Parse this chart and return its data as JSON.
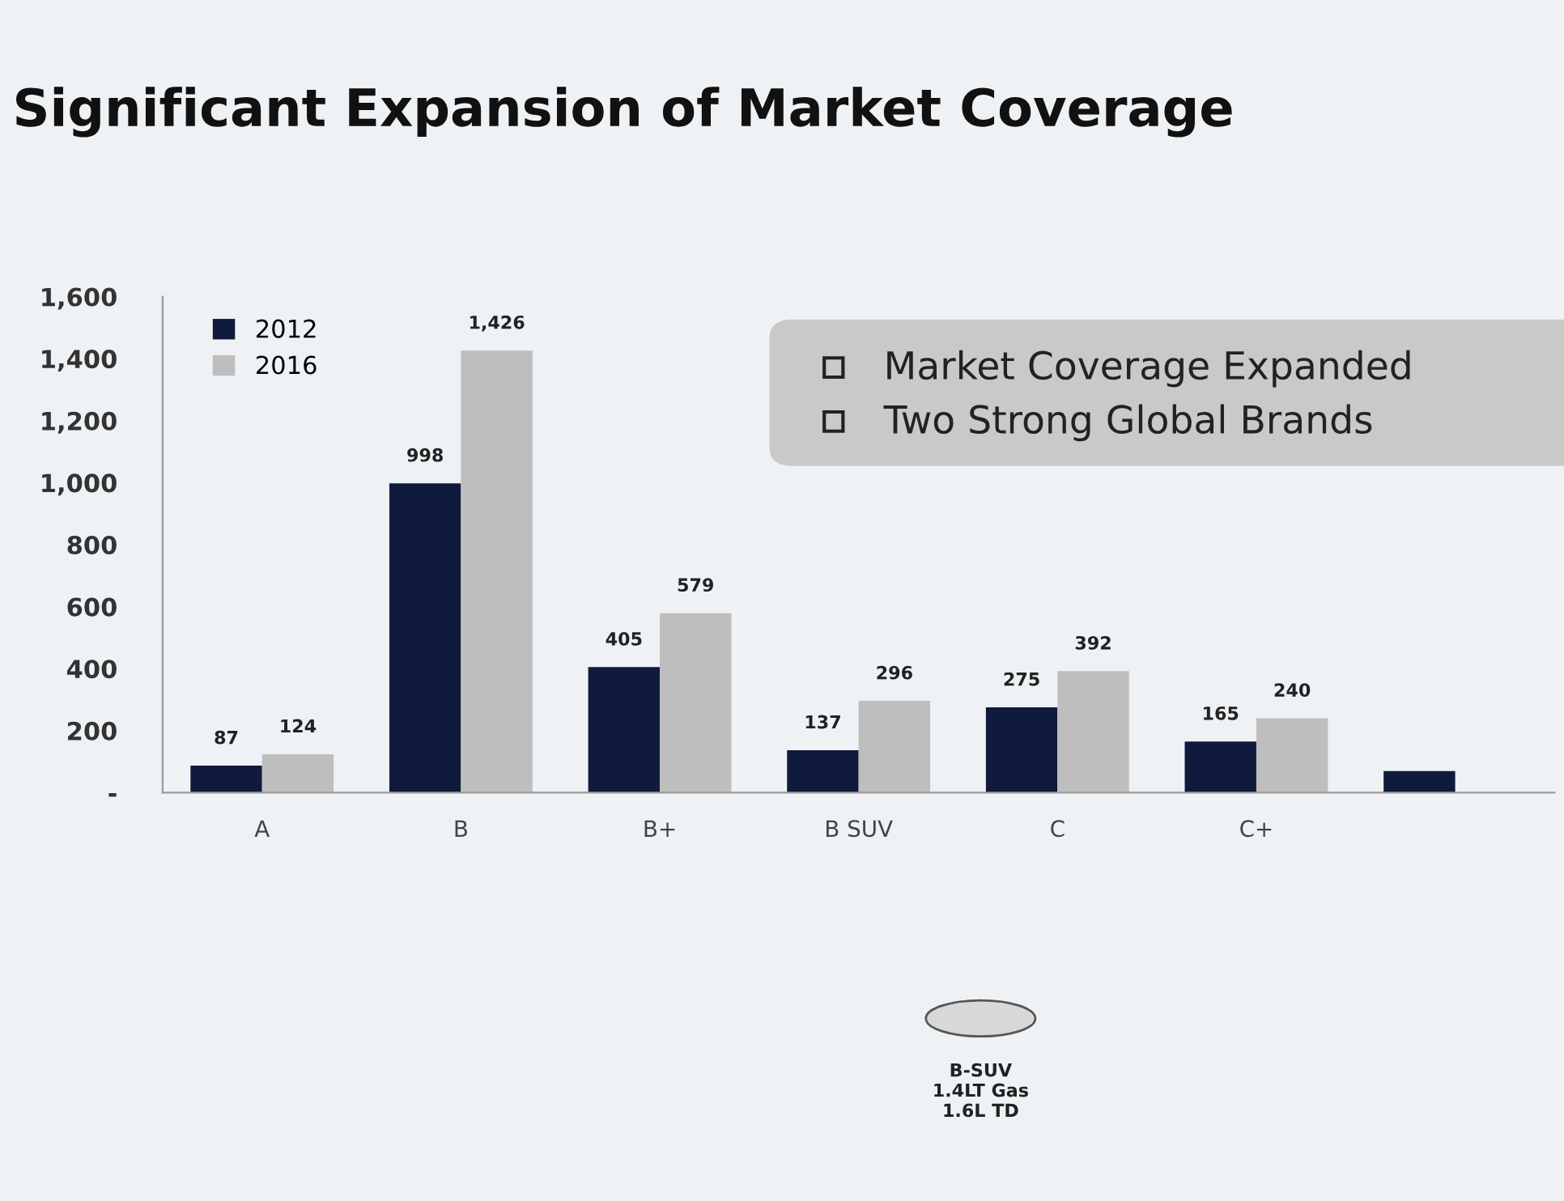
{
  "chart_data": {
    "type": "bar",
    "title": "Significant Expansion of Market Coverage",
    "categories": [
      "A",
      "B",
      "B+",
      "B SUV",
      "C",
      "C+",
      null
    ],
    "series": [
      {
        "name": "2012",
        "color": "#101a3c",
        "values": [
          87,
          998,
          405,
          137,
          275,
          165,
          70
        ],
        "value_labels": [
          "87",
          "998",
          "405",
          "137",
          "275",
          "165",
          null
        ]
      },
      {
        "name": "2016",
        "color": "#bebebe",
        "values": [
          124,
          1426,
          579,
          296,
          392,
          240,
          null
        ],
        "value_labels": [
          "124",
          "1,426",
          "579",
          "296",
          "392",
          "240",
          null
        ]
      }
    ],
    "ylim": [
      0,
      1600
    ],
    "yticks": [
      {
        "value": 0,
        "label": "-"
      },
      200,
      400,
      600,
      800,
      {
        "value": 1000,
        "label": "1,000"
      },
      {
        "value": 1200,
        "label": "1,200"
      },
      {
        "value": 1400,
        "label": "1,400"
      },
      {
        "value": 1600,
        "label": "1,600"
      }
    ],
    "legend": "top left",
    "annotations": [
      "Market Coverage Expanded",
      "Two Strong Global Brands",
      "B-SUV\n1.4LT Gas\n1.6L TD"
    ]
  }
}
